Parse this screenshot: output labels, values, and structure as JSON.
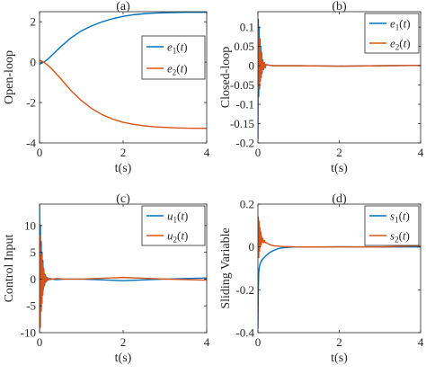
{
  "chart_data": [
    {
      "type": "line",
      "title": "(a)",
      "xlabel": "t(s)",
      "ylabel": "Open-loop",
      "xlim": [
        0,
        4
      ],
      "ylim": [
        -4,
        2.5
      ],
      "xticks": [
        "0",
        "2",
        "4"
      ],
      "yticks": [
        "-4",
        "-2",
        "0",
        "2"
      ],
      "xtick_values": [
        0,
        2,
        4
      ],
      "ytick_values": [
        -4,
        -2,
        0,
        2
      ],
      "grid": false,
      "legend_position": "right",
      "series": [
        {
          "name": "e1(t)",
          "color": "#0072BD",
          "x": [
            0,
            0.1,
            0.2,
            0.3,
            0.5,
            0.75,
            1.0,
            1.25,
            1.5,
            1.75,
            2.0,
            2.25,
            2.5,
            2.75,
            3.0,
            3.25,
            3.5,
            4.0
          ],
          "y": [
            -0.1,
            0.0,
            0.15,
            0.35,
            0.75,
            1.2,
            1.55,
            1.8,
            2.0,
            2.15,
            2.27,
            2.35,
            2.4,
            2.43,
            2.45,
            2.46,
            2.47,
            2.47
          ]
        },
        {
          "name": "e2(t)",
          "color": "#D95319",
          "x": [
            0,
            0.1,
            0.2,
            0.3,
            0.5,
            0.75,
            1.0,
            1.25,
            1.5,
            1.75,
            2.0,
            2.25,
            2.5,
            2.75,
            3.0,
            3.25,
            3.5,
            4.0
          ],
          "y": [
            0.1,
            0.0,
            -0.15,
            -0.35,
            -0.8,
            -1.4,
            -1.9,
            -2.3,
            -2.6,
            -2.82,
            -2.98,
            -3.08,
            -3.15,
            -3.2,
            -3.23,
            -3.25,
            -3.27,
            -3.28
          ]
        }
      ]
    },
    {
      "type": "line",
      "title": "(b)",
      "xlabel": "t(s)",
      "ylabel": "Closed-loop",
      "xlim": [
        0,
        4
      ],
      "ylim": [
        -0.2,
        0.14
      ],
      "xticks": [
        "0",
        "2",
        "4"
      ],
      "yticks": [
        "-0.2",
        "-0.15",
        "-0.1",
        "-0.05",
        "0",
        "0.05",
        "0.1"
      ],
      "xtick_values": [
        0,
        2,
        4
      ],
      "ytick_values": [
        -0.2,
        -0.15,
        -0.1,
        -0.05,
        0,
        0.05,
        0.1
      ],
      "grid": false,
      "legend_position": "top-right",
      "series": [
        {
          "name": "e1(t)",
          "color": "#0072BD",
          "x": [
            0,
            0.01,
            0.02,
            0.03,
            0.04,
            0.05,
            0.06,
            0.07,
            0.08,
            0.09,
            0.1,
            0.12,
            0.14,
            0.16,
            0.18,
            0.2,
            0.25,
            0.3,
            0.4,
            0.6,
            1.0,
            2.0,
            3.0,
            4.0
          ],
          "y": [
            -0.19,
            0.12,
            -0.08,
            0.1,
            -0.06,
            0.07,
            -0.04,
            0.05,
            -0.03,
            0.035,
            -0.02,
            0.015,
            -0.01,
            0.008,
            -0.005,
            0.003,
            0.002,
            0.001,
            0.0,
            0.0,
            0.0,
            -0.001,
            0.0,
            0.001
          ]
        },
        {
          "name": "e2(t)",
          "color": "#D95319",
          "x": [
            0,
            0.01,
            0.02,
            0.03,
            0.04,
            0.05,
            0.06,
            0.07,
            0.08,
            0.09,
            0.1,
            0.12,
            0.14,
            0.16,
            0.18,
            0.2,
            0.25,
            0.3,
            0.4,
            0.6,
            1.0,
            2.0,
            3.0,
            4.0
          ],
          "y": [
            0.0,
            0.09,
            -0.06,
            0.07,
            -0.05,
            0.05,
            -0.035,
            0.035,
            -0.025,
            0.02,
            -0.015,
            0.012,
            -0.008,
            0.006,
            -0.004,
            0.003,
            0.002,
            0.001,
            0.0,
            0.0,
            0.0,
            -0.001,
            0.0,
            0.001
          ]
        }
      ]
    },
    {
      "type": "line",
      "title": "(c)",
      "xlabel": "t(s)",
      "ylabel": "Control Input",
      "xlim": [
        0,
        4
      ],
      "ylim": [
        -10,
        14
      ],
      "xticks": [
        "0",
        "2",
        "4"
      ],
      "yticks": [
        "-10",
        "-5",
        "0",
        "5",
        "10"
      ],
      "xtick_values": [
        0,
        2,
        4
      ],
      "ytick_values": [
        -10,
        -5,
        0,
        5,
        10
      ],
      "grid": false,
      "legend_position": "top-right",
      "series": [
        {
          "name": "u1(t)",
          "color": "#0072BD",
          "x": [
            0,
            0.01,
            0.02,
            0.03,
            0.04,
            0.05,
            0.06,
            0.07,
            0.08,
            0.09,
            0.1,
            0.12,
            0.14,
            0.16,
            0.18,
            0.2,
            0.25,
            0.3,
            0.4,
            0.6,
            1.0,
            2.0,
            3.0,
            4.0
          ],
          "y": [
            14,
            -8,
            10,
            -6,
            7,
            -4,
            5,
            -3,
            3.5,
            -2,
            2,
            -1.2,
            0.8,
            -0.5,
            0.3,
            -0.2,
            0.1,
            0.0,
            -0.1,
            0.0,
            0.0,
            -0.3,
            0.0,
            0.2
          ]
        },
        {
          "name": "u2(t)",
          "color": "#D95319",
          "x": [
            0,
            0.01,
            0.02,
            0.03,
            0.04,
            0.05,
            0.06,
            0.07,
            0.08,
            0.09,
            0.1,
            0.12,
            0.14,
            0.16,
            0.18,
            0.2,
            0.25,
            0.3,
            0.4,
            0.6,
            1.0,
            2.0,
            3.0,
            4.0
          ],
          "y": [
            -9.5,
            8,
            -9,
            6,
            -6,
            4.5,
            -4.5,
            3,
            -3,
            2,
            -1.5,
            1,
            -0.7,
            0.4,
            -0.3,
            0.2,
            -0.1,
            0.0,
            0.1,
            0.0,
            0.0,
            0.3,
            0.0,
            -0.2
          ]
        }
      ]
    },
    {
      "type": "line",
      "title": "(d)",
      "xlabel": "t(s)",
      "ylabel": "Sliding Variable",
      "xlim": [
        0,
        4
      ],
      "ylim": [
        -0.4,
        0.2
      ],
      "xticks": [
        "0",
        "2",
        "4"
      ],
      "yticks": [
        "-0.4",
        "-0.2",
        "0",
        "0.2"
      ],
      "xtick_values": [
        0,
        2,
        4
      ],
      "ytick_values": [
        -0.4,
        -0.2,
        0,
        0.2
      ],
      "grid": false,
      "legend_position": "top-right",
      "series": [
        {
          "name": "s1(t)",
          "color": "#0072BD",
          "x": [
            0,
            0.01,
            0.02,
            0.03,
            0.05,
            0.07,
            0.1,
            0.15,
            0.2,
            0.3,
            0.4,
            0.5,
            0.6,
            0.8,
            1.0,
            1.5,
            2.0,
            3.0,
            4.0
          ],
          "y": [
            -0.38,
            -0.2,
            -0.12,
            -0.1,
            -0.08,
            -0.07,
            -0.06,
            -0.05,
            -0.04,
            -0.025,
            -0.015,
            -0.008,
            -0.004,
            -0.001,
            0.0,
            0.0,
            0.001,
            0.0,
            0.0
          ]
        },
        {
          "name": "s2(t)",
          "color": "#D95319",
          "x": [
            0,
            0.01,
            0.02,
            0.03,
            0.04,
            0.05,
            0.06,
            0.07,
            0.08,
            0.09,
            0.1,
            0.12,
            0.14,
            0.16,
            0.18,
            0.2,
            0.25,
            0.3,
            0.4,
            0.6,
            1.0,
            2.0,
            3.0,
            4.0
          ],
          "y": [
            0.0,
            0.14,
            -0.05,
            0.12,
            -0.02,
            0.09,
            0.0,
            0.07,
            0.01,
            0.05,
            0.02,
            0.04,
            0.02,
            0.03,
            0.02,
            0.02,
            0.015,
            0.01,
            0.005,
            0.002,
            0.0,
            0.0,
            0.0,
            0.005
          ]
        }
      ]
    }
  ]
}
